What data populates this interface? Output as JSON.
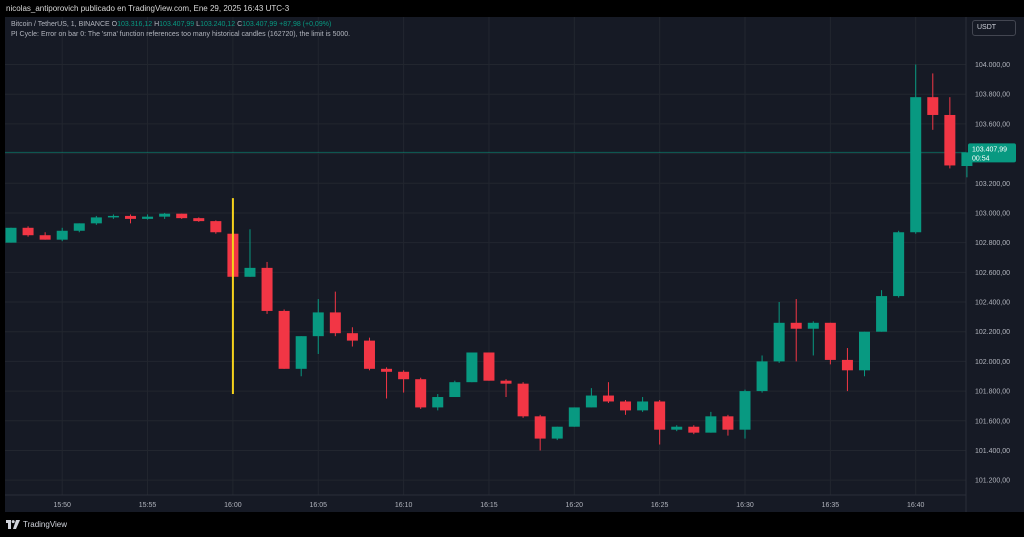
{
  "header": {
    "attribution": "nicolas_antiporovich publicado en TradingView.com, Ene 29, 2025 16:43 UTC-3"
  },
  "legend": {
    "symbol": "Bitcoin / TetherUS, 1, BINANCE",
    "open_label": "O",
    "open": "103.316,12",
    "high_label": "H",
    "high": "103.407,99",
    "low_label": "L",
    "low": "103.240,12",
    "close_label": "C",
    "close": "103.407,99",
    "change": "+87,98 (+0,09%)",
    "error": "PI Cycle: Error on bar 0: The 'sma' function references too many historical candles (162720), the limit is 5000."
  },
  "currency": "USDT",
  "price_label": {
    "price": "103.407,99",
    "countdown": "00:54"
  },
  "footer": {
    "brand": "TradingView"
  },
  "colors": {
    "up": "#089981",
    "down": "#f23645",
    "background": "#161a25",
    "grid": "#22262f",
    "marker": "#f5d21b",
    "price_line": "#089981"
  },
  "chart_data": {
    "type": "candlestick",
    "interval": "1m",
    "x_tick_labels": [
      "15:50",
      "15:55",
      "16:00",
      "16:05",
      "16:10",
      "16:15",
      "16:20",
      "16:25",
      "16:30",
      "16:35",
      "16:40"
    ],
    "y_tick_labels": [
      "104.000,00",
      "103.800,00",
      "103.600,00",
      "103.400,00",
      "103.200,00",
      "103.000,00",
      "102.800,00",
      "102.600,00",
      "102.400,00",
      "102.200,00",
      "102.000,00",
      "101.800,00",
      "101.600,00",
      "101.400,00",
      "101.200,00"
    ],
    "y_ticks": [
      104000,
      103800,
      103600,
      103400,
      103200,
      103000,
      102800,
      102600,
      102400,
      102200,
      102000,
      101800,
      101600,
      101400,
      101200
    ],
    "ylim": [
      101100,
      104320
    ],
    "first_candle_time": "15:47",
    "vertical_marker": {
      "time": "16:00",
      "low": 101780,
      "high": 103100
    },
    "current_price": 103407.99,
    "candles": [
      {
        "t": "15:47",
        "o": 102800,
        "h": 102900,
        "l": 102800,
        "c": 102900
      },
      {
        "t": "15:48",
        "o": 102900,
        "h": 102910,
        "l": 102840,
        "c": 102850
      },
      {
        "t": "15:49",
        "o": 102850,
        "h": 102870,
        "l": 102820,
        "c": 102820
      },
      {
        "t": "15:50",
        "o": 102820,
        "h": 102900,
        "l": 102810,
        "c": 102880
      },
      {
        "t": "15:51",
        "o": 102880,
        "h": 102930,
        "l": 102870,
        "c": 102930
      },
      {
        "t": "15:52",
        "o": 102930,
        "h": 102980,
        "l": 102920,
        "c": 102970
      },
      {
        "t": "15:53",
        "o": 102970,
        "h": 102990,
        "l": 102960,
        "c": 102980
      },
      {
        "t": "15:54",
        "o": 102980,
        "h": 102990,
        "l": 102930,
        "c": 102960
      },
      {
        "t": "15:55",
        "o": 102960,
        "h": 102990,
        "l": 102955,
        "c": 102975
      },
      {
        "t": "15:56",
        "o": 102975,
        "h": 103000,
        "l": 102960,
        "c": 102995
      },
      {
        "t": "15:57",
        "o": 102995,
        "h": 102995,
        "l": 102960,
        "c": 102965
      },
      {
        "t": "15:58",
        "o": 102965,
        "h": 102970,
        "l": 102940,
        "c": 102945
      },
      {
        "t": "15:59",
        "o": 102945,
        "h": 102950,
        "l": 102860,
        "c": 102870
      },
      {
        "t": "16:00",
        "o": 102860,
        "h": 102870,
        "l": 102570,
        "c": 102570
      },
      {
        "t": "16:01",
        "o": 102570,
        "h": 102890,
        "l": 102570,
        "c": 102630
      },
      {
        "t": "16:02",
        "o": 102630,
        "h": 102670,
        "l": 102320,
        "c": 102340
      },
      {
        "t": "16:03",
        "o": 102340,
        "h": 102350,
        "l": 101950,
        "c": 101950
      },
      {
        "t": "16:04",
        "o": 101950,
        "h": 102170,
        "l": 101900,
        "c": 102170
      },
      {
        "t": "16:05",
        "o": 102170,
        "h": 102420,
        "l": 102050,
        "c": 102330
      },
      {
        "t": "16:06",
        "o": 102330,
        "h": 102470,
        "l": 102170,
        "c": 102190
      },
      {
        "t": "16:07",
        "o": 102190,
        "h": 102230,
        "l": 102100,
        "c": 102140
      },
      {
        "t": "16:08",
        "o": 102140,
        "h": 102160,
        "l": 101940,
        "c": 101950
      },
      {
        "t": "16:09",
        "o": 101950,
        "h": 101960,
        "l": 101750,
        "c": 101930
      },
      {
        "t": "16:10",
        "o": 101930,
        "h": 101940,
        "l": 101790,
        "c": 101880
      },
      {
        "t": "16:11",
        "o": 101880,
        "h": 101890,
        "l": 101680,
        "c": 101690
      },
      {
        "t": "16:12",
        "o": 101690,
        "h": 101780,
        "l": 101670,
        "c": 101760
      },
      {
        "t": "16:13",
        "o": 101760,
        "h": 101870,
        "l": 101760,
        "c": 101860
      },
      {
        "t": "16:14",
        "o": 101860,
        "h": 102060,
        "l": 101860,
        "c": 102060
      },
      {
        "t": "16:15",
        "o": 102060,
        "h": 102060,
        "l": 101870,
        "c": 101870
      },
      {
        "t": "16:16",
        "o": 101870,
        "h": 101880,
        "l": 101760,
        "c": 101850
      },
      {
        "t": "16:17",
        "o": 101850,
        "h": 101860,
        "l": 101620,
        "c": 101630
      },
      {
        "t": "16:18",
        "o": 101630,
        "h": 101640,
        "l": 101400,
        "c": 101480
      },
      {
        "t": "16:19",
        "o": 101480,
        "h": 101560,
        "l": 101470,
        "c": 101560
      },
      {
        "t": "16:20",
        "o": 101560,
        "h": 101690,
        "l": 101560,
        "c": 101690
      },
      {
        "t": "16:21",
        "o": 101690,
        "h": 101820,
        "l": 101690,
        "c": 101770
      },
      {
        "t": "16:22",
        "o": 101770,
        "h": 101860,
        "l": 101720,
        "c": 101730
      },
      {
        "t": "16:23",
        "o": 101730,
        "h": 101740,
        "l": 101640,
        "c": 101670
      },
      {
        "t": "16:24",
        "o": 101670,
        "h": 101760,
        "l": 101660,
        "c": 101730
      },
      {
        "t": "16:25",
        "o": 101730,
        "h": 101740,
        "l": 101440,
        "c": 101540
      },
      {
        "t": "16:26",
        "o": 101540,
        "h": 101570,
        "l": 101530,
        "c": 101560
      },
      {
        "t": "16:27",
        "o": 101560,
        "h": 101570,
        "l": 101510,
        "c": 101520
      },
      {
        "t": "16:28",
        "o": 101520,
        "h": 101660,
        "l": 101520,
        "c": 101630
      },
      {
        "t": "16:29",
        "o": 101630,
        "h": 101640,
        "l": 101500,
        "c": 101540
      },
      {
        "t": "16:30",
        "o": 101540,
        "h": 101810,
        "l": 101480,
        "c": 101800
      },
      {
        "t": "16:31",
        "o": 101800,
        "h": 102040,
        "l": 101790,
        "c": 102000
      },
      {
        "t": "16:32",
        "o": 102000,
        "h": 102400,
        "l": 101990,
        "c": 102260
      },
      {
        "t": "16:33",
        "o": 102260,
        "h": 102420,
        "l": 102000,
        "c": 102220
      },
      {
        "t": "16:34",
        "o": 102220,
        "h": 102270,
        "l": 102040,
        "c": 102260
      },
      {
        "t": "16:35",
        "o": 102260,
        "h": 102260,
        "l": 101980,
        "c": 102010
      },
      {
        "t": "16:36",
        "o": 102010,
        "h": 102090,
        "l": 101800,
        "c": 101940
      },
      {
        "t": "16:37",
        "o": 101940,
        "h": 102200,
        "l": 101900,
        "c": 102200
      },
      {
        "t": "16:38",
        "o": 102200,
        "h": 102480,
        "l": 102200,
        "c": 102440
      },
      {
        "t": "16:39",
        "o": 102440,
        "h": 102880,
        "l": 102430,
        "c": 102870
      },
      {
        "t": "16:40",
        "o": 102870,
        "h": 104000,
        "l": 102860,
        "c": 103780
      },
      {
        "t": "16:41",
        "o": 103780,
        "h": 103940,
        "l": 103560,
        "c": 103660
      },
      {
        "t": "16:42",
        "o": 103660,
        "h": 103780,
        "l": 103300,
        "c": 103320
      },
      {
        "t": "16:43",
        "o": 103316.12,
        "h": 103407.99,
        "l": 103240.12,
        "c": 103407.99
      }
    ]
  }
}
